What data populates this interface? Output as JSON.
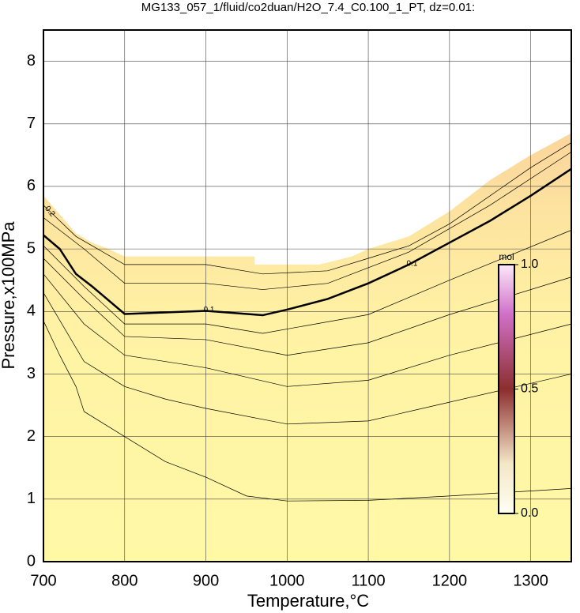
{
  "chart_data": {
    "type": "contour",
    "title": "MG133_057_1/fluid/co2duan/H2O_7.4_C0.100_1_PT, dz=0.01:",
    "x_label": "Temperature,°C",
    "y_label": "Pressure,x100MPa",
    "xlim": [
      700,
      1350
    ],
    "ylim": [
      0,
      8.5
    ],
    "xticks": [
      700,
      800,
      900,
      1000,
      1100,
      1200,
      1300
    ],
    "yticks": [
      0,
      1,
      2,
      3,
      4,
      5,
      6,
      7,
      8
    ],
    "grid": true,
    "region": {
      "x": [
        700,
        720,
        740,
        760,
        780,
        800,
        960,
        960,
        1040,
        1080,
        1100,
        1150,
        1200,
        1250,
        1300,
        1350
      ],
      "values": [
        5.85,
        5.55,
        5.25,
        5.1,
        5.0,
        4.88,
        4.88,
        4.75,
        4.75,
        4.88,
        5.0,
        5.2,
        5.6,
        6.1,
        6.5,
        6.85
      ]
    },
    "series": [
      {
        "x": [
          700,
          720,
          740,
          750,
          800,
          850,
          900,
          950,
          1000,
          1100,
          1200,
          1350
        ],
        "values": [
          3.85,
          3.3,
          2.8,
          2.4,
          2.0,
          1.6,
          1.35,
          1.05,
          0.97,
          0.98,
          1.05,
          1.17
        ],
        "color": "#000000"
      },
      {
        "x": [
          700,
          750,
          800,
          850,
          900,
          1000,
          1100,
          1200,
          1350
        ],
        "values": [
          4.3,
          3.2,
          2.8,
          2.6,
          2.45,
          2.2,
          2.25,
          2.55,
          3.0
        ],
        "color": "#000000"
      },
      {
        "x": [
          700,
          750,
          800,
          900,
          1000,
          1100,
          1200,
          1350
        ],
        "values": [
          4.6,
          3.8,
          3.3,
          3.1,
          2.8,
          2.9,
          3.3,
          3.8
        ],
        "color": "#000000"
      },
      {
        "x": [
          700,
          750,
          800,
          900,
          1000,
          1100,
          1200,
          1350
        ],
        "values": [
          4.85,
          4.2,
          3.6,
          3.55,
          3.3,
          3.5,
          3.95,
          4.55
        ],
        "color": "#000000"
      },
      {
        "x": [
          700,
          750,
          800,
          900,
          970,
          1100,
          1200,
          1350
        ],
        "values": [
          5.05,
          4.4,
          3.8,
          3.8,
          3.65,
          3.95,
          4.5,
          5.3
        ],
        "color": "#000000"
      },
      {
        "x": [
          700,
          720,
          740,
          760,
          800,
          900,
          970,
          1000,
          1050,
          1100,
          1150,
          1200,
          1250,
          1300,
          1350
        ],
        "values": [
          5.22,
          5.0,
          4.6,
          4.4,
          3.96,
          4.01,
          3.94,
          4.03,
          4.2,
          4.45,
          4.75,
          5.1,
          5.45,
          5.85,
          6.28
        ],
        "color": "#000000",
        "label": "0.1",
        "thick": true
      },
      {
        "x": [
          700,
          750,
          800,
          900,
          970,
          1050,
          1150,
          1250,
          1350
        ],
        "values": [
          5.5,
          5.0,
          4.45,
          4.45,
          4.35,
          4.45,
          4.95,
          5.7,
          6.55
        ],
        "color": "#000000"
      },
      {
        "x": [
          700,
          720,
          740,
          780,
          800,
          900,
          970,
          1050,
          1100,
          1150,
          1200,
          1250,
          1300,
          1350
        ],
        "values": [
          5.7,
          5.45,
          5.2,
          4.9,
          4.75,
          4.75,
          4.6,
          4.65,
          4.85,
          5.05,
          5.4,
          5.85,
          6.3,
          6.7
        ],
        "color": "#000000",
        "label": "0.2"
      }
    ],
    "colorbar": {
      "unit": "mol",
      "lim": [
        0,
        1
      ],
      "ticks": [
        {
          "value": 0,
          "label": "0.0"
        },
        {
          "value": 0.5,
          "label": "0.5"
        },
        {
          "value": 1,
          "label": "1.0"
        }
      ]
    }
  }
}
